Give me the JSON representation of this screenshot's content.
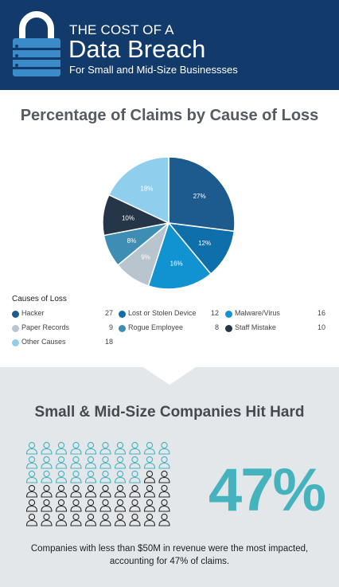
{
  "header": {
    "line1": "THE COST OF A",
    "line2": "Data Breach",
    "line3": "For Small and Mid-Size Businessses"
  },
  "colors": {
    "header_bg": "#123a6b",
    "accent_teal": "#45b3be",
    "section2_bg": "#e3e7ea"
  },
  "icons": [
    "padlock-icon",
    "person-icon"
  ],
  "chart_data": {
    "type": "pie",
    "title": "Percentage of Claims by Cause of Loss",
    "legend_title": "Causes of Loss",
    "legend_position": "bottom",
    "series": [
      {
        "name": "Hacker",
        "value": 27,
        "label": "27%",
        "color": "#1d5a8e"
      },
      {
        "name": "Lost or Stolen Device",
        "value": 12,
        "label": "12%",
        "color": "#0e6fab"
      },
      {
        "name": "Malware/Virus",
        "value": 16,
        "label": "16%",
        "color": "#1192d1"
      },
      {
        "name": "Paper Records",
        "value": 9,
        "label": "9%",
        "color": "#b8c4ce"
      },
      {
        "name": "Rogue Employee",
        "value": 8,
        "label": "8%",
        "color": "#3d8db5"
      },
      {
        "name": "Staff Mistake",
        "value": 10,
        "label": "10%",
        "color": "#253649"
      },
      {
        "name": "Other Causes",
        "value": 18,
        "label": "18%",
        "color": "#8fcfed"
      }
    ]
  },
  "section2": {
    "title": "Small & Mid-Size Companies Hit Hard",
    "percent_text": "47%",
    "percent_value": 47,
    "highlighted_fraction": 0.47,
    "description": "Companies with less than $50M in revenue were the most impacted, accounting for 47% of claims."
  }
}
